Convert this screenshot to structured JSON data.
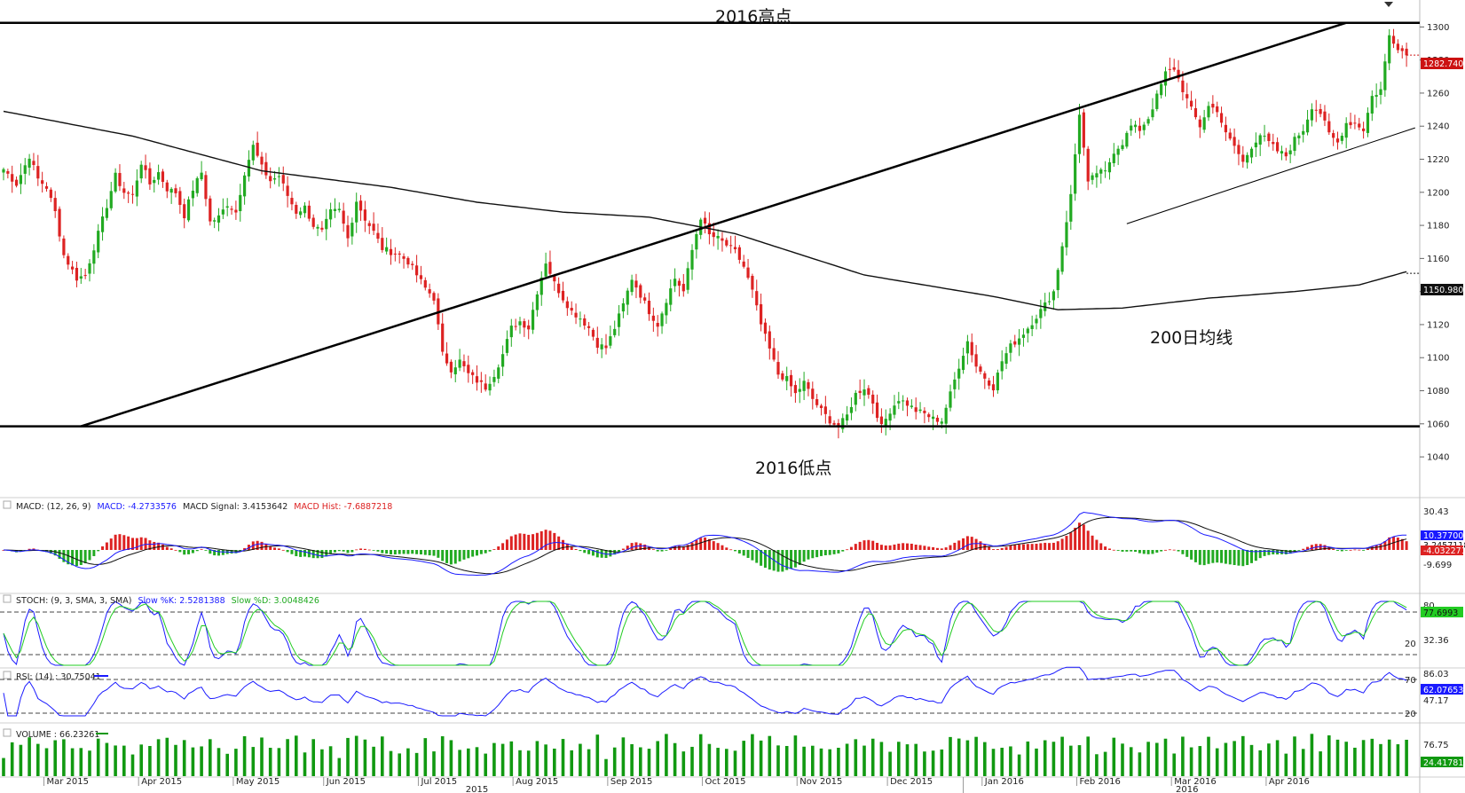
{
  "chart_data": {
    "type": "candlestick",
    "title": "",
    "price_axis": {
      "ylim": [
        1032,
        1312
      ],
      "ticks": [
        1300,
        1280,
        1260,
        1240,
        1220,
        1200,
        1180,
        1160,
        1140,
        1120,
        1100,
        1080,
        1060,
        1040
      ],
      "position": "right"
    },
    "x_axis": {
      "months": [
        "Mar 2015",
        "Apr 2015",
        "May 2015",
        "Jun 2015",
        "Jul 2015",
        "Aug 2015",
        "Sep 2015",
        "Oct 2015",
        "Nov 2015",
        "Dec 2015",
        "Jan 2016",
        "Feb 2016",
        "Mar 2016",
        "Apr 2016"
      ],
      "years": [
        "2015",
        "2016"
      ]
    },
    "price_keypoints": [
      [
        0,
        1214
      ],
      [
        3,
        1205
      ],
      [
        6,
        1222
      ],
      [
        8,
        1208
      ],
      [
        10,
        1203
      ],
      [
        12,
        1188
      ],
      [
        14,
        1162
      ],
      [
        17,
        1148
      ],
      [
        19,
        1150
      ],
      [
        22,
        1175
      ],
      [
        24,
        1192
      ],
      [
        26,
        1210
      ],
      [
        28,
        1200
      ],
      [
        30,
        1198
      ],
      [
        32,
        1218
      ],
      [
        34,
        1205
      ],
      [
        36,
        1212
      ],
      [
        38,
        1202
      ],
      [
        40,
        1200
      ],
      [
        42,
        1186
      ],
      [
        44,
        1202
      ],
      [
        46,
        1212
      ],
      [
        48,
        1182
      ],
      [
        50,
        1185
      ],
      [
        52,
        1193
      ],
      [
        54,
        1188
      ],
      [
        56,
        1212
      ],
      [
        58,
        1228
      ],
      [
        60,
        1215
      ],
      [
        62,
        1207
      ],
      [
        64,
        1210
      ],
      [
        66,
        1198
      ],
      [
        68,
        1188
      ],
      [
        70,
        1191
      ],
      [
        72,
        1180
      ],
      [
        74,
        1176
      ],
      [
        76,
        1188
      ],
      [
        78,
        1189
      ],
      [
        80,
        1172
      ],
      [
        82,
        1195
      ],
      [
        84,
        1184
      ],
      [
        86,
        1176
      ],
      [
        88,
        1166
      ],
      [
        90,
        1164
      ],
      [
        92,
        1162
      ],
      [
        94,
        1158
      ],
      [
        96,
        1150
      ],
      [
        98,
        1142
      ],
      [
        100,
        1136
      ],
      [
        102,
        1102
      ],
      [
        104,
        1093
      ],
      [
        106,
        1098
      ],
      [
        108,
        1090
      ],
      [
        110,
        1086
      ],
      [
        112,
        1082
      ],
      [
        114,
        1090
      ],
      [
        116,
        1102
      ],
      [
        118,
        1118
      ],
      [
        120,
        1122
      ],
      [
        122,
        1118
      ],
      [
        124,
        1140
      ],
      [
        126,
        1158
      ],
      [
        128,
        1145
      ],
      [
        130,
        1136
      ],
      [
        132,
        1128
      ],
      [
        134,
        1124
      ],
      [
        136,
        1118
      ],
      [
        138,
        1108
      ],
      [
        140,
        1106
      ],
      [
        142,
        1118
      ],
      [
        144,
        1132
      ],
      [
        146,
        1148
      ],
      [
        148,
        1138
      ],
      [
        150,
        1128
      ],
      [
        152,
        1120
      ],
      [
        154,
        1135
      ],
      [
        156,
        1148
      ],
      [
        158,
        1140
      ],
      [
        160,
        1165
      ],
      [
        162,
        1185
      ],
      [
        164,
        1174
      ],
      [
        166,
        1172
      ],
      [
        168,
        1168
      ],
      [
        170,
        1164
      ],
      [
        172,
        1155
      ],
      [
        174,
        1140
      ],
      [
        176,
        1120
      ],
      [
        178,
        1105
      ],
      [
        180,
        1090
      ],
      [
        182,
        1087
      ],
      [
        184,
        1078
      ],
      [
        186,
        1085
      ],
      [
        188,
        1075
      ],
      [
        190,
        1068
      ],
      [
        192,
        1062
      ],
      [
        194,
        1058
      ],
      [
        196,
        1065
      ],
      [
        198,
        1078
      ],
      [
        200,
        1082
      ],
      [
        202,
        1073
      ],
      [
        204,
        1058
      ],
      [
        206,
        1068
      ],
      [
        208,
        1075
      ],
      [
        210,
        1072
      ],
      [
        212,
        1068
      ],
      [
        214,
        1066
      ],
      [
        216,
        1063
      ],
      [
        218,
        1062
      ],
      [
        220,
        1078
      ],
      [
        222,
        1095
      ],
      [
        224,
        1110
      ],
      [
        226,
        1095
      ],
      [
        228,
        1088
      ],
      [
        230,
        1082
      ],
      [
        232,
        1098
      ],
      [
        234,
        1107
      ],
      [
        236,
        1112
      ],
      [
        238,
        1118
      ],
      [
        240,
        1125
      ],
      [
        242,
        1132
      ],
      [
        244,
        1140
      ],
      [
        246,
        1168
      ],
      [
        248,
        1198
      ],
      [
        250,
        1248
      ],
      [
        252,
        1205
      ],
      [
        254,
        1212
      ],
      [
        256,
        1212
      ],
      [
        258,
        1225
      ],
      [
        260,
        1230
      ],
      [
        262,
        1240
      ],
      [
        264,
        1238
      ],
      [
        266,
        1245
      ],
      [
        268,
        1258
      ],
      [
        270,
        1272
      ],
      [
        272,
        1275
      ],
      [
        274,
        1262
      ],
      [
        276,
        1250
      ],
      [
        278,
        1240
      ],
      [
        280,
        1252
      ],
      [
        282,
        1250
      ],
      [
        284,
        1235
      ],
      [
        286,
        1228
      ],
      [
        288,
        1218
      ],
      [
        290,
        1228
      ],
      [
        292,
        1235
      ],
      [
        294,
        1230
      ],
      [
        296,
        1225
      ],
      [
        298,
        1222
      ],
      [
        300,
        1232
      ],
      [
        302,
        1238
      ],
      [
        304,
        1252
      ],
      [
        306,
        1248
      ],
      [
        308,
        1235
      ],
      [
        310,
        1230
      ],
      [
        312,
        1242
      ],
      [
        314,
        1242
      ],
      [
        316,
        1238
      ],
      [
        318,
        1258
      ],
      [
        320,
        1262
      ],
      [
        322,
        1295
      ],
      [
        324,
        1288
      ],
      [
        326,
        1283
      ]
    ],
    "ma200_keypoints": [
      [
        0,
        1249
      ],
      [
        30,
        1234
      ],
      [
        60,
        1213
      ],
      [
        90,
        1203
      ],
      [
        110,
        1194
      ],
      [
        130,
        1188
      ],
      [
        150,
        1185
      ],
      [
        170,
        1175
      ],
      [
        200,
        1150
      ],
      [
        230,
        1137
      ],
      [
        245,
        1129
      ],
      [
        260,
        1130
      ],
      [
        280,
        1136
      ],
      [
        300,
        1140
      ],
      [
        315,
        1144
      ],
      [
        326,
        1152
      ]
    ],
    "last_price": "1282.740",
    "ma200_value": "1150.980",
    "annotations": {
      "high_label": "2016高点",
      "low_label": "2016低点",
      "ma_label": "200日均线",
      "high_level": 1302.5,
      "low_level": 1058.5
    },
    "trendlines": [
      {
        "from": [
          18,
          1058.5
        ],
        "to": [
          312,
          1302.5
        ],
        "weight": "heavy"
      },
      {
        "from": [
          261,
          1181
        ],
        "to": [
          328,
          1239
        ],
        "weight": "thin"
      }
    ],
    "macd": {
      "label": "MACD: (12, 26, 9)",
      "macd_label": "MACD: -4.2733576",
      "signal_label": "MACD Signal: 3.4153642",
      "hist_label": "MACD Hist: -7.6887218",
      "ticks": [
        "30.43",
        "-9.699"
      ],
      "tags": [
        "10.37700",
        "3.2457118",
        "-4.0322711"
      ]
    },
    "stoch": {
      "label": "STOCH: (9, 3, SMA, 3, SMA)",
      "k_label": "Slow %K: 2.5281388",
      "d_label": "Slow %D: 3.0048426",
      "ticks": [
        "80",
        "32.36",
        "20"
      ],
      "tag": "77.6993"
    },
    "rsi": {
      "label": "RSI: (14) : 30.75041",
      "ticks": [
        "86.03",
        "70",
        "47.17",
        "20"
      ],
      "tag": "62.07653"
    },
    "volume": {
      "label": "VOLUME : 66.23261",
      "ticks": [
        "76.75"
      ],
      "tag": "24.41781"
    },
    "colors": {
      "up": "#22aa22",
      "down": "#dd2222",
      "ma": "#111111",
      "macd_line": "#1a1aff",
      "signal_line": "#111111",
      "stoch_k": "#1a1aff",
      "stoch_d": "#22cc22",
      "rsi_line": "#1a1aff",
      "volume_bar": "#119911",
      "last_price_tag": "#cc1111"
    }
  }
}
